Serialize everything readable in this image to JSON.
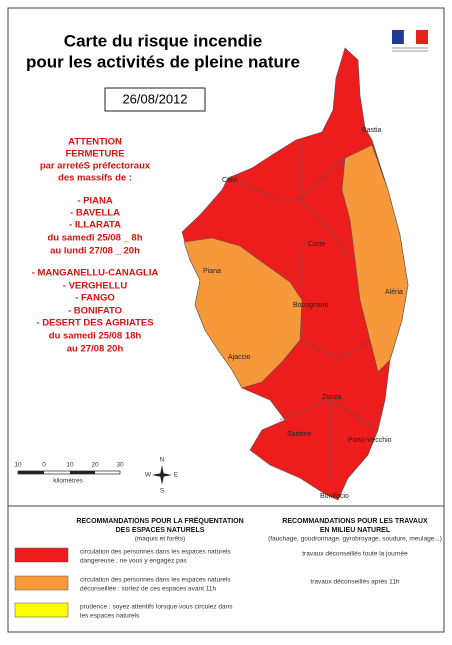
{
  "header": {
    "title": [
      "Carte du risque incendie",
      "pour les activités de pleine nature"
    ],
    "date": "26/08/2012"
  },
  "warning": [
    "ATTENTION",
    "FERMETURE",
    "par arretéS préfectoraux",
    "des massifs de :",
    "- PIANA",
    "- BAVELLA",
    "- ILLARATA",
    "du samedi 25/08 _ 8h",
    "au lundi 27/08 _ 20h",
    "- MANGANELLU-CANAGLIA",
    "- VERGHELLU",
    "- FANGO",
    "- BONIFATO",
    "- DESERT DES AGRIATES",
    "du samedi 25/08 18h",
    "au 27/08 20h"
  ],
  "towns": [
    "Bastia",
    "Calvi",
    "Corte",
    "Piana",
    "Aléria",
    "Bocognano",
    "Ajaccio",
    "Zonza",
    "Sartène",
    "Porto-Vecchio",
    "Bonifacio"
  ],
  "scale": {
    "labels": [
      "10",
      "0",
      "10",
      "20",
      "30"
    ],
    "unit": "kilomètres"
  },
  "compass": [
    "N",
    "S",
    "W",
    "E"
  ],
  "legend": {
    "headers": [
      [
        "RECOMMANDATIONS POUR LA FRÉQUENTATION",
        "DES ESPACES NATURELS",
        "(maquis et forêts)"
      ],
      [
        "RECOMMANDATIONS POUR LES TRAVAUX",
        "EN MILIEU NATUREL",
        "(fauchage, goudronnage, gyrobroyage, soudure, meulage...)"
      ]
    ],
    "rows": [
      {
        "color": "#ee1d1d",
        "people": [
          "circulation des personnes dans les espaces naturels",
          "dangereuse : ne vous y engagez pas"
        ],
        "works": "travaux déconseillés toute la journée"
      },
      {
        "color": "#f7983a",
        "people": [
          "circulation des personnes dans les espaces naturels",
          "déconseillée : sortez de ces espaces avant 11h"
        ],
        "works": "travaux déconseillés après 11h"
      },
      {
        "color": "#ffff00",
        "people": [
          "prudence : soyez attentifs lorsque vous circulez dans",
          "les espaces naturels"
        ]
      }
    ]
  }
}
